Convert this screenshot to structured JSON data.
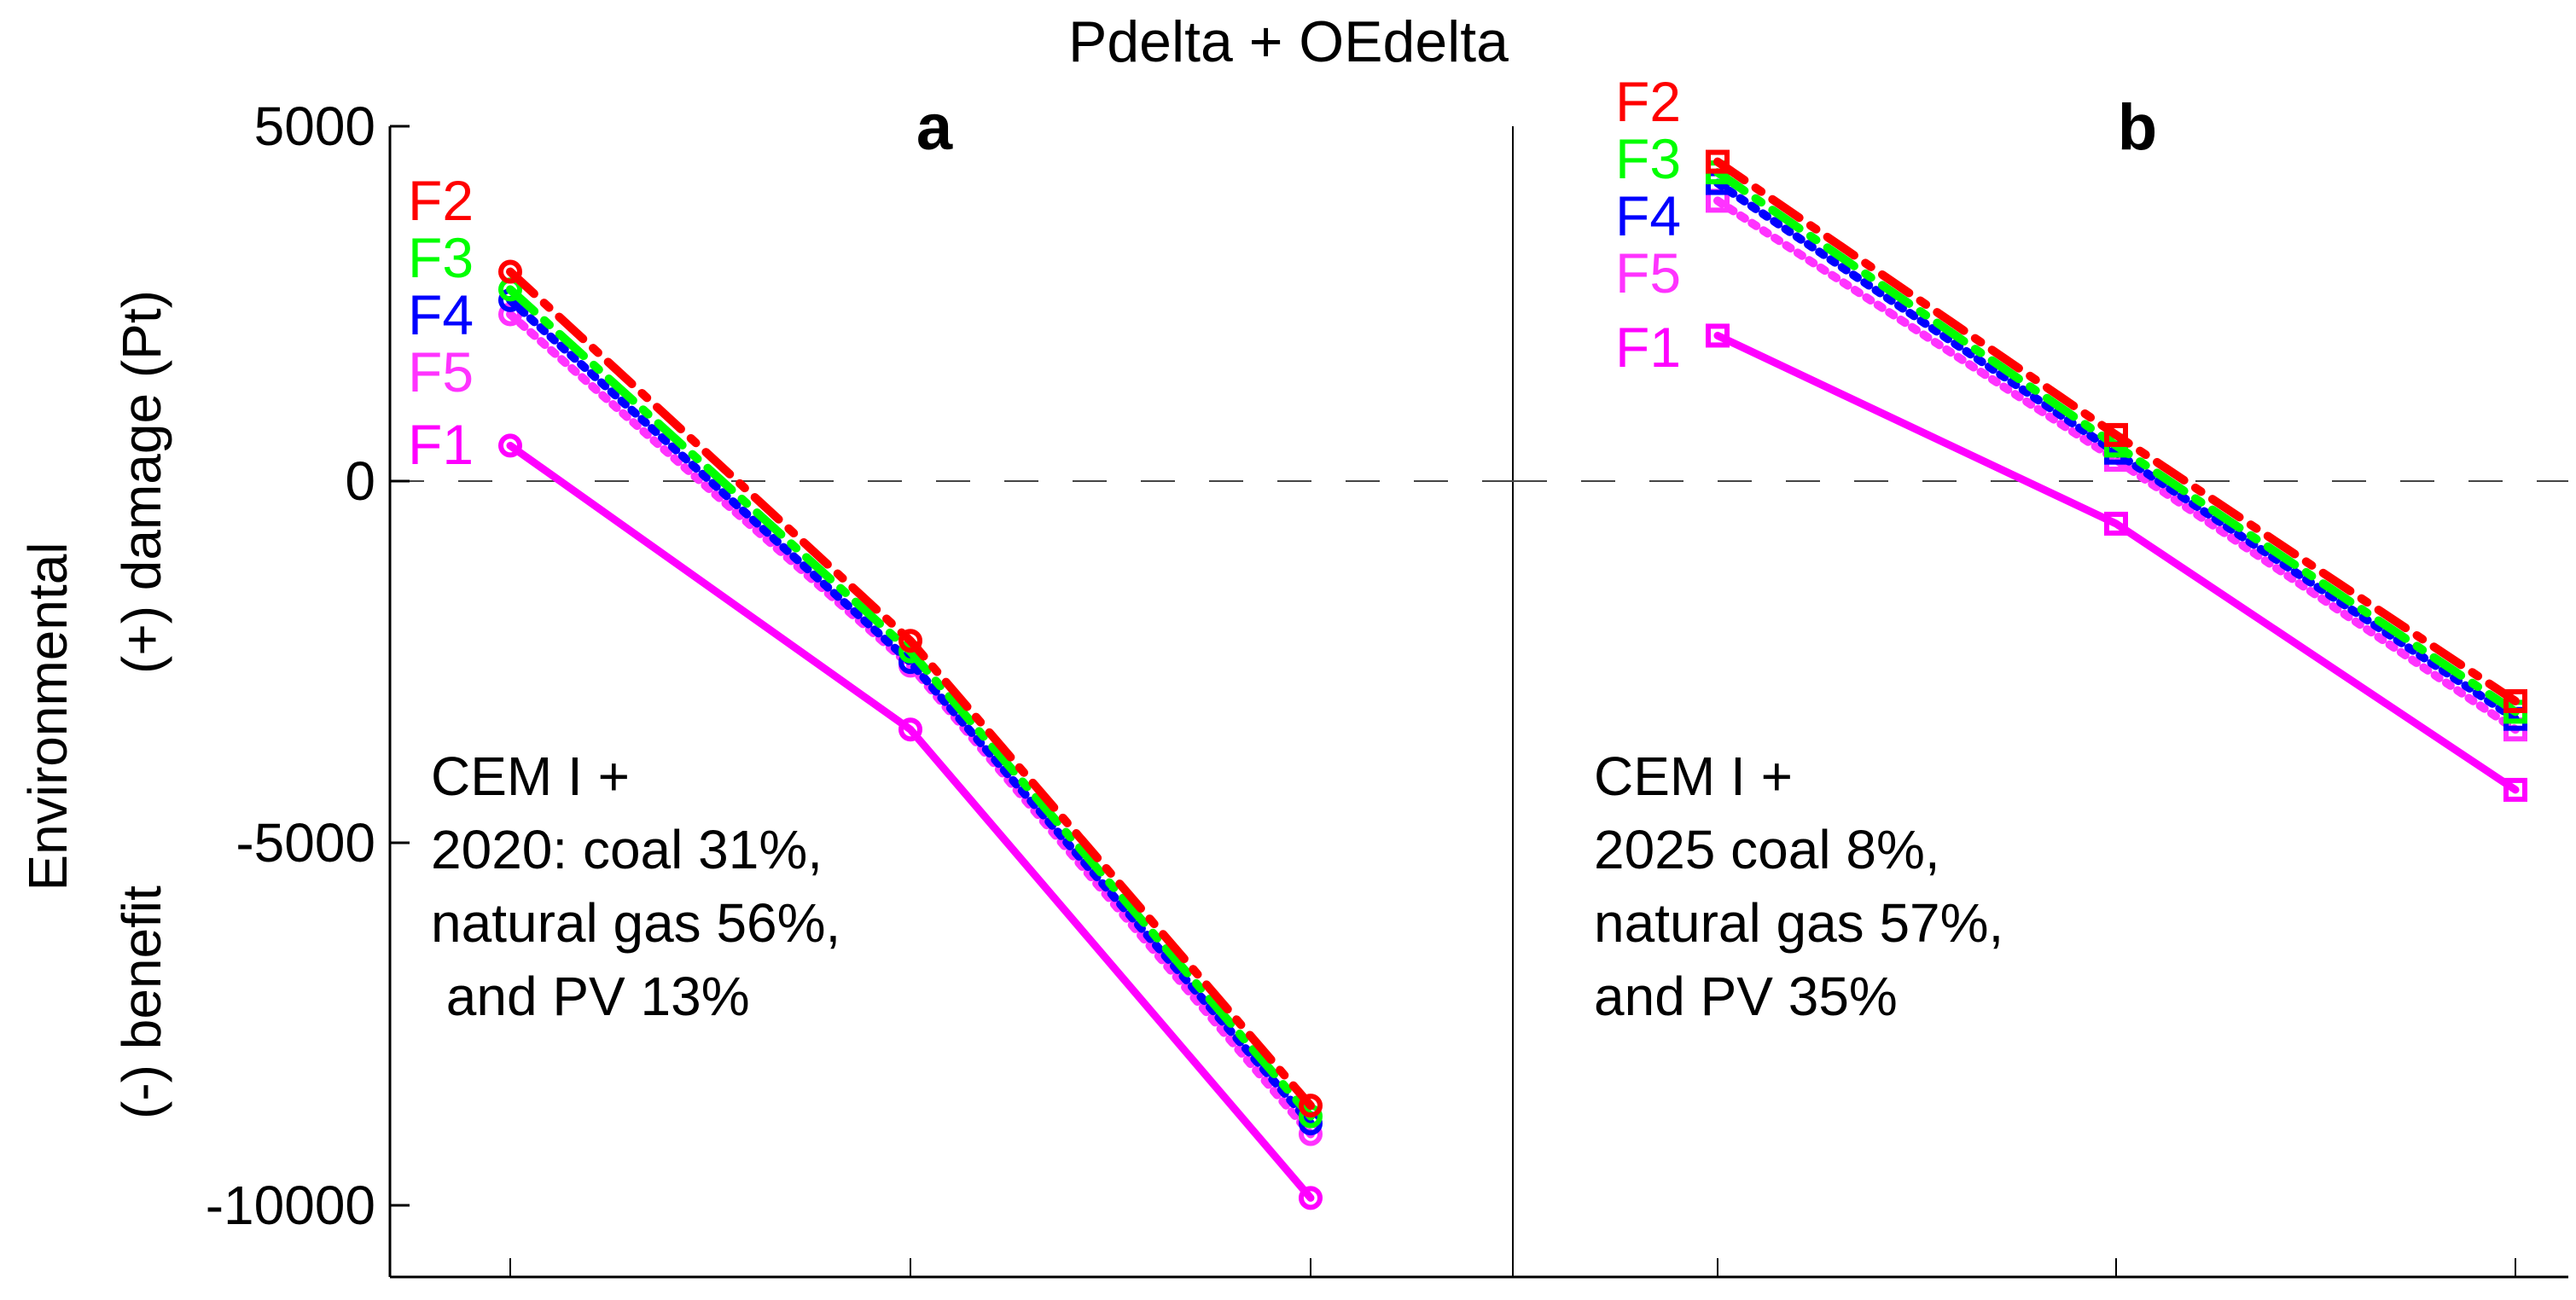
{
  "figure_title": "Pdelta + OEdelta",
  "y_axis": {
    "label_line1": "Environmental",
    "label_line2": "(-) benefit",
    "label_line3": "(+) damage (Pt)",
    "ticks": [
      5000,
      0,
      -5000,
      -10000
    ]
  },
  "chart_data": [
    {
      "type": "line",
      "panel_label": "a",
      "annotation": [
        "CEM I +",
        "2020: coal 31%,",
        "natural gas 56%,",
        " and PV 13%"
      ],
      "x": [
        1,
        2,
        3
      ],
      "ylim": [
        -11000,
        5000
      ],
      "marker": "circle",
      "series": [
        {
          "name": "F2",
          "color": "#ff0000",
          "dash": "dashdot",
          "values": [
            2950,
            -2250,
            -8800
          ]
        },
        {
          "name": "F3",
          "color": "#00ff00",
          "dash": "dashdot",
          "values": [
            2700,
            -2400,
            -8950
          ]
        },
        {
          "name": "F4",
          "color": "#0000ff",
          "dash": "dotted",
          "values": [
            2550,
            -2550,
            -9050
          ]
        },
        {
          "name": "F5",
          "color": "#ff33ff",
          "dash": "dotted",
          "values": [
            2350,
            -2600,
            -9200
          ]
        },
        {
          "name": "F1",
          "color": "#ff00ff",
          "dash": "solid",
          "values": [
            500,
            -3500,
            -10100
          ]
        }
      ]
    },
    {
      "type": "line",
      "panel_label": "b",
      "annotation": [
        "CEM I +",
        "2025 coal 8%,",
        "natural gas 57%,",
        "and PV 35%"
      ],
      "x": [
        1,
        2,
        3
      ],
      "ylim": [
        -11000,
        5000
      ],
      "marker": "square",
      "series": [
        {
          "name": "F2",
          "color": "#ff0000",
          "dash": "dashdot",
          "values": [
            4500,
            650,
            -3100
          ]
        },
        {
          "name": "F3",
          "color": "#00ff00",
          "dash": "dashdot",
          "values": [
            4350,
            500,
            -3250
          ]
        },
        {
          "name": "F4",
          "color": "#0000ff",
          "dash": "dotted",
          "values": [
            4200,
            400,
            -3350
          ]
        },
        {
          "name": "F5",
          "color": "#ff33ff",
          "dash": "dotted",
          "values": [
            3950,
            300,
            -3500
          ]
        },
        {
          "name": "F1",
          "color": "#ff00ff",
          "dash": "solid",
          "values": [
            2050,
            -600,
            -4350
          ]
        }
      ]
    }
  ]
}
